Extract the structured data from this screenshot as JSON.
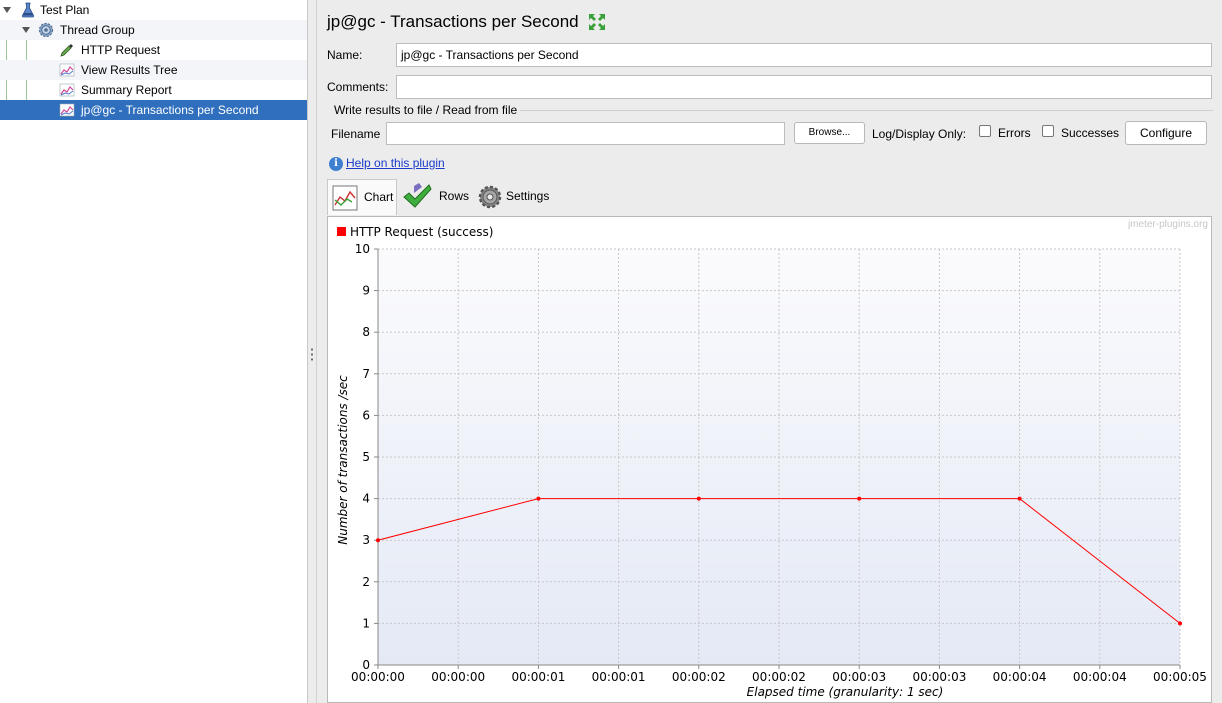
{
  "tree": {
    "items": [
      {
        "label": "Test Plan",
        "icon": "flask-icon"
      },
      {
        "label": "Thread Group",
        "icon": "gear-icon"
      },
      {
        "label": "HTTP Request",
        "icon": "pipette-icon"
      },
      {
        "label": "View Results Tree",
        "icon": "graph-icon"
      },
      {
        "label": "Summary Report",
        "icon": "graph-icon"
      },
      {
        "label": "jp@gc - Transactions per Second",
        "icon": "graph-icon"
      }
    ]
  },
  "panel": {
    "title": "jp@gc - Transactions per Second",
    "name_label": "Name:",
    "name_value": "jp@gc - Transactions per Second",
    "comments_label": "Comments:",
    "comments_value": "",
    "file_group_title": "Write results to file / Read from file",
    "filename_label": "Filename",
    "filename_value": "",
    "browse_label": "Browse...",
    "log_display_label": "Log/Display Only:",
    "errors_label": "Errors",
    "successes_label": "Successes",
    "configure_label": "Configure",
    "help_link": "Help on this plugin",
    "tabs": [
      {
        "label": "Chart",
        "icon": "chart-icon"
      },
      {
        "label": "Rows",
        "icon": "checkmark-icon"
      },
      {
        "label": "Settings",
        "icon": "gear-icon"
      }
    ]
  },
  "colors": {
    "accent": "#2f6fbd",
    "series": "#ff0000",
    "link": "#1a3acc"
  },
  "chart_data": {
    "type": "line",
    "watermark": "jmeter-plugins.org",
    "xlabel": "Elapsed time (granularity: 1 sec)",
    "ylabel": "Number of transactions /sec",
    "ylim": [
      0,
      10
    ],
    "y_ticks": [
      "0",
      "1",
      "2",
      "3",
      "4",
      "5",
      "6",
      "7",
      "8",
      "9",
      "10"
    ],
    "x_ticks": [
      "00:00:00",
      "00:00:00",
      "00:00:01",
      "00:00:01",
      "00:00:02",
      "00:00:02",
      "00:00:03",
      "00:00:03",
      "00:00:04",
      "00:00:04",
      "00:00:05"
    ],
    "x_range_sec": [
      0,
      5
    ],
    "grid": true,
    "legend_position": "top-left",
    "series": [
      {
        "name": "HTTP Request (success)",
        "color": "#ff0000",
        "x": [
          "00:00:00",
          "00:00:01",
          "00:00:02",
          "00:00:03",
          "00:00:04",
          "00:00:05"
        ],
        "x_seconds": [
          0,
          1,
          2,
          3,
          4,
          5
        ],
        "values": [
          3,
          4,
          4,
          4,
          4,
          1
        ]
      }
    ]
  }
}
